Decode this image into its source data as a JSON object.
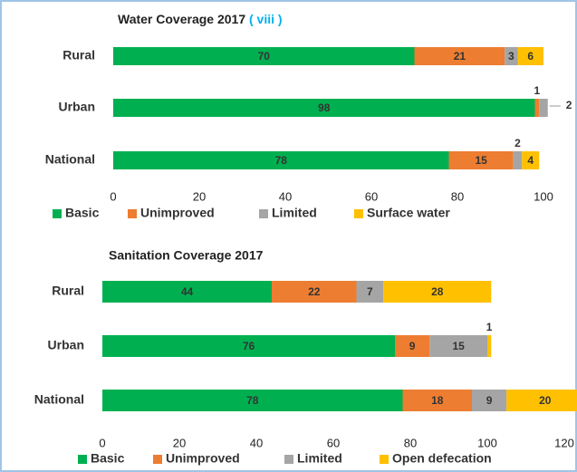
{
  "chart_data": [
    {
      "type": "stacked-barh",
      "title": "Water Coverage 2017",
      "title_suffix": "( viii )",
      "categories": [
        "Rural",
        "Urban",
        "National"
      ],
      "series": [
        {
          "name": "Basic",
          "color": "#00b050",
          "values": [
            70,
            98,
            78
          ]
        },
        {
          "name": "Unimproved",
          "color": "#ed7d31",
          "values": [
            21,
            1,
            15
          ]
        },
        {
          "name": "Limited",
          "color": "#a5a5a5",
          "values": [
            3,
            2,
            2
          ]
        },
        {
          "name": "Surface water",
          "color": "#ffc000",
          "values": [
            6,
            null,
            4
          ]
        }
      ],
      "xlim": [
        0,
        100
      ],
      "xticks": [
        0,
        20,
        40,
        60,
        80,
        100
      ]
    },
    {
      "type": "stacked-barh",
      "title": "Sanitation Coverage 2017",
      "categories": [
        "Rural",
        "Urban",
        "National"
      ],
      "series": [
        {
          "name": "Basic",
          "color": "#00b050",
          "values": [
            44,
            76,
            78
          ]
        },
        {
          "name": "Unimproved",
          "color": "#ed7d31",
          "values": [
            22,
            9,
            18
          ]
        },
        {
          "name": "Limited",
          "color": "#a5a5a5",
          "values": [
            7,
            15,
            9
          ]
        },
        {
          "name": "Open defecation",
          "color": "#ffc000",
          "values": [
            28,
            1,
            20
          ]
        }
      ],
      "xlim": [
        0,
        120
      ],
      "xticks": [
        0,
        20,
        40,
        60,
        80,
        100,
        120
      ]
    }
  ]
}
